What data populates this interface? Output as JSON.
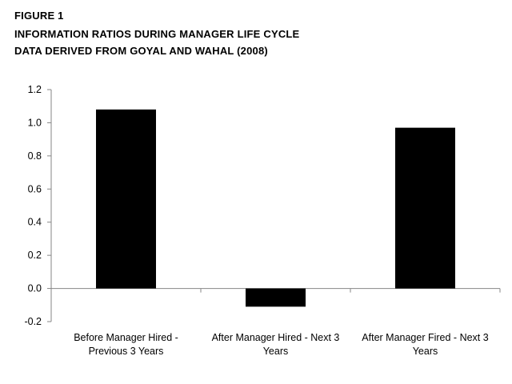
{
  "figure": {
    "label": "FIGURE 1",
    "title": "INFORMATION RATIOS DURING MANAGER LIFE CYCLE",
    "subtitle": "DATA DERIVED FROM GOYAL AND WAHAL (2008)"
  },
  "chart_data": {
    "type": "bar",
    "title": "INFORMATION RATIOS DURING MANAGER LIFE CYCLE",
    "subtitle": "DATA DERIVED FROM GOYAL AND WAHAL (2008)",
    "xlabel": "",
    "ylabel": "",
    "categories": [
      [
        "Before Manager Hired -",
        "Previous  3 Years"
      ],
      [
        "After Manager Hired - Next 3",
        "Years"
      ],
      [
        "After Manager Fired - Next 3",
        "Years"
      ]
    ],
    "values": [
      1.08,
      -0.11,
      0.97
    ],
    "ylim": [
      -0.2,
      1.2
    ],
    "yticks": [
      "1.2",
      "1.0",
      "0.8",
      "0.6",
      "0.4",
      "0.2",
      "0.0",
      "-0.2"
    ],
    "ytick_values": [
      1.2,
      1.0,
      0.8,
      0.6,
      0.4,
      0.2,
      0.0,
      -0.2
    ],
    "grid": false,
    "legend": "none",
    "bar_color": "#000000",
    "axis_color": "#868686"
  }
}
